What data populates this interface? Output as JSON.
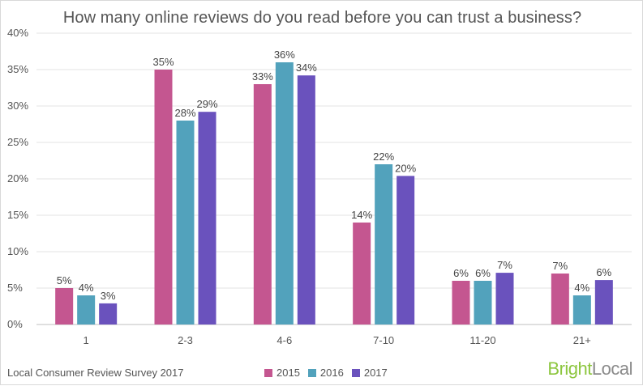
{
  "chart_data": {
    "type": "bar",
    "title": "How many online reviews do you read before you can trust a business?",
    "categories": [
      "1",
      "2-3",
      "4-6",
      "7-10",
      "11-20",
      "21+"
    ],
    "series": [
      {
        "name": "2015",
        "color": "#c45690",
        "values": [
          5,
          35,
          33,
          14,
          6,
          7
        ],
        "labels": [
          "5%",
          "35%",
          "33%",
          "14%",
          "6%",
          "7%"
        ]
      },
      {
        "name": "2016",
        "color": "#52a2bc",
        "values": [
          4,
          28,
          36,
          22,
          6,
          4
        ],
        "labels": [
          "4%",
          "28%",
          "36%",
          "22%",
          "6%",
          "4%"
        ]
      },
      {
        "name": "2017",
        "color": "#6a52bd",
        "values": [
          2.9,
          29.2,
          34.2,
          20.4,
          7.1,
          6.1
        ],
        "labels": [
          "3%",
          "29%",
          "34%",
          "20%",
          "7%",
          "6%"
        ]
      }
    ],
    "ylim": [
      0,
      40
    ],
    "yticks": [
      0,
      5,
      10,
      15,
      20,
      25,
      30,
      35,
      40
    ],
    "ytick_labels": [
      "0%",
      "5%",
      "10%",
      "15%",
      "20%",
      "25%",
      "30%",
      "35%",
      "40%"
    ],
    "grid": true,
    "legend_position": "bottom-center",
    "xlabel": "",
    "ylabel": ""
  },
  "footer": {
    "source": "Local Consumer Review Survey 2017"
  },
  "brand": {
    "part1": "Bright",
    "part2": "Local"
  }
}
